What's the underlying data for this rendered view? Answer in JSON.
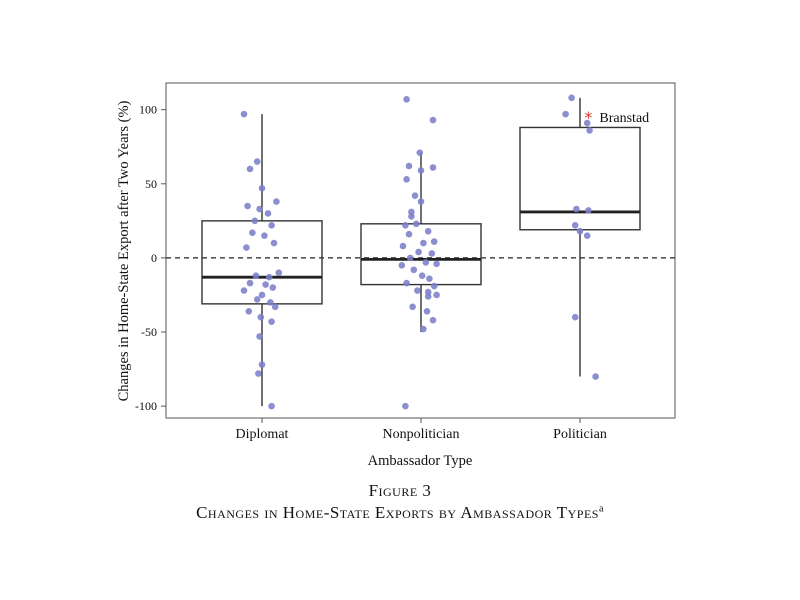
{
  "chart_data": {
    "type": "box",
    "xlabel": "Ambassador Type",
    "ylabel": "Changes in Home-State Export after Two Years (%)",
    "ylim": [
      -108,
      118
    ],
    "yticks": [
      -100,
      -50,
      0,
      50,
      100
    ],
    "reference_line": {
      "y": 0,
      "style": "dashed"
    },
    "categories": [
      "Diplomat",
      "Nonpolitician",
      "Politician"
    ],
    "boxes": [
      {
        "category": "Diplomat",
        "whisker_low": -100,
        "q1": -31,
        "median": -13,
        "q3": 25,
        "whisker_high": 97
      },
      {
        "category": "Nonpolitician",
        "whisker_low": -50,
        "q1": -18,
        "median": -1,
        "q3": 23,
        "whisker_high": 71
      },
      {
        "category": "Politician",
        "whisker_low": -80,
        "q1": 19,
        "median": 31,
        "q3": 88,
        "whisker_high": 108
      }
    ],
    "points": [
      [
        0,
        -0.15,
        97
      ],
      [
        0,
        -0.04,
        65
      ],
      [
        0,
        -0.1,
        60
      ],
      [
        0,
        0.0,
        47
      ],
      [
        0,
        0.12,
        38
      ],
      [
        0,
        -0.12,
        35
      ],
      [
        0,
        -0.02,
        33
      ],
      [
        0,
        0.05,
        30
      ],
      [
        0,
        -0.06,
        25
      ],
      [
        0,
        0.08,
        22
      ],
      [
        0,
        -0.08,
        17
      ],
      [
        0,
        0.02,
        15
      ],
      [
        0,
        0.1,
        10
      ],
      [
        0,
        -0.13,
        7
      ],
      [
        0,
        -0.05,
        -12
      ],
      [
        0,
        0.06,
        -13
      ],
      [
        0,
        0.14,
        -10
      ],
      [
        0,
        -0.1,
        -17
      ],
      [
        0,
        0.03,
        -18
      ],
      [
        0,
        0.09,
        -20
      ],
      [
        0,
        -0.15,
        -22
      ],
      [
        0,
        0.0,
        -25
      ],
      [
        0,
        -0.04,
        -28
      ],
      [
        0,
        0.07,
        -30
      ],
      [
        0,
        0.11,
        -33
      ],
      [
        0,
        -0.11,
        -36
      ],
      [
        0,
        -0.01,
        -40
      ],
      [
        0,
        0.08,
        -43
      ],
      [
        0,
        -0.02,
        -53
      ],
      [
        0,
        0.0,
        -72
      ],
      [
        0,
        -0.03,
        -78
      ],
      [
        0,
        0.08,
        -100
      ],
      [
        1,
        -0.12,
        107
      ],
      [
        1,
        0.1,
        93
      ],
      [
        1,
        -0.01,
        71
      ],
      [
        1,
        0.1,
        61
      ],
      [
        1,
        -0.1,
        62
      ],
      [
        1,
        -0.05,
        42
      ],
      [
        1,
        0.0,
        38
      ],
      [
        1,
        -0.08,
        31
      ],
      [
        1,
        -0.13,
        22
      ],
      [
        1,
        -0.04,
        23
      ],
      [
        1,
        -0.1,
        16
      ],
      [
        1,
        0.06,
        18
      ],
      [
        1,
        0.11,
        11
      ],
      [
        1,
        0.02,
        10
      ],
      [
        1,
        -0.15,
        8
      ],
      [
        1,
        -0.02,
        4
      ],
      [
        1,
        0.09,
        3
      ],
      [
        1,
        -0.09,
        0
      ],
      [
        1,
        0.04,
        -3
      ],
      [
        1,
        0.13,
        -4
      ],
      [
        1,
        -0.16,
        -5
      ],
      [
        1,
        -0.06,
        -8
      ],
      [
        1,
        0.01,
        -12
      ],
      [
        1,
        0.07,
        -14
      ],
      [
        1,
        -0.12,
        -17
      ],
      [
        1,
        0.11,
        -19
      ],
      [
        1,
        -0.03,
        -22
      ],
      [
        1,
        0.06,
        -23
      ],
      [
        1,
        0.13,
        -25
      ],
      [
        1,
        -0.07,
        -33
      ],
      [
        1,
        0.05,
        -36
      ],
      [
        1,
        0.1,
        -42
      ],
      [
        1,
        0.02,
        -48
      ],
      [
        1,
        -0.13,
        -100
      ],
      [
        1,
        0.06,
        -26
      ],
      [
        1,
        -0.08,
        28
      ],
      [
        1,
        -0.12,
        53
      ],
      [
        1,
        0.0,
        59
      ],
      [
        2,
        -0.07,
        108
      ],
      [
        2,
        -0.12,
        97
      ],
      [
        2,
        0.06,
        91
      ],
      [
        2,
        0.08,
        86
      ],
      [
        2,
        -0.03,
        33
      ],
      [
        2,
        0.07,
        32
      ],
      [
        2,
        -0.04,
        22
      ],
      [
        2,
        0.0,
        18
      ],
      [
        2,
        0.06,
        15
      ],
      [
        2,
        -0.04,
        -40
      ],
      [
        2,
        0.13,
        -80
      ]
    ],
    "highlight": {
      "category": "Politician",
      "x_offset": 0.07,
      "y": 95,
      "marker": "asterisk",
      "color": "#d13b2e",
      "label": "Branstad"
    },
    "colors": {
      "point": "#7b80c9",
      "box": "#333333",
      "highlight": "#d13b2e"
    }
  },
  "caption": {
    "figure_number": "Figure 3",
    "title": "Changes in Home-State Exports by Ambassador Types",
    "title_superscript": "a"
  }
}
